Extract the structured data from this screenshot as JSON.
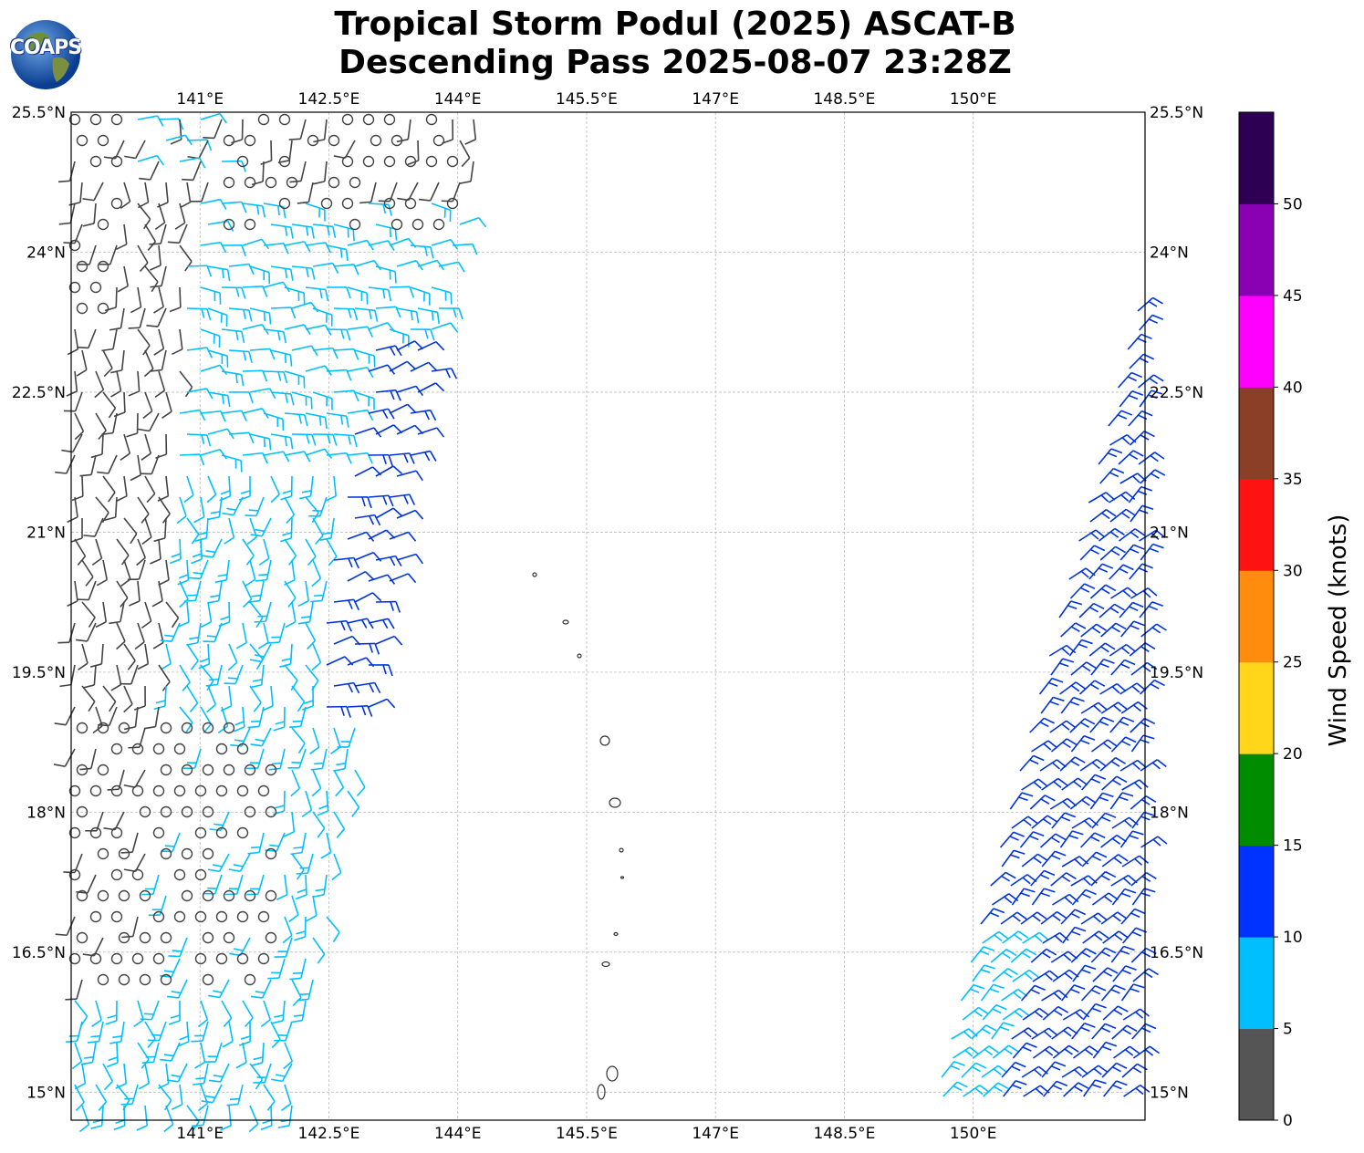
{
  "title": {
    "line1": "Tropical Storm Podul (2025) ASCAT-B",
    "line2": "Descending Pass 2025-08-07 23:28Z"
  },
  "logo": {
    "text": "COAPS"
  },
  "map": {
    "lon_range": [
      139.5,
      152.0
    ],
    "lat_range": [
      14.7,
      25.5
    ],
    "lon_ticks": [
      "141°E",
      "142.5°E",
      "144°E",
      "145.5°E",
      "147°E",
      "148.5°E",
      "150°E"
    ],
    "lat_ticks": [
      "25.5°N",
      "24°N",
      "22.5°N",
      "21°N",
      "19.5°N",
      "18°N",
      "16.5°N",
      "15°N"
    ],
    "grid": true
  },
  "colorbar": {
    "label": "Wind Speed (knots)",
    "ticks": [
      "0",
      "5",
      "10",
      "15",
      "20",
      "25",
      "30",
      "35",
      "40",
      "45",
      "50"
    ],
    "colors": [
      "#555555",
      "#00bfff",
      "#0033ff",
      "#008c00",
      "#ffd61a",
      "#ff8c0d",
      "#ff1212",
      "#8b3f26",
      "#ff00ff",
      "#8a00b3",
      "#2e0054"
    ]
  },
  "wind_colors": {
    "calm": "#444444",
    "light": "#00bfff",
    "moderate": "#0033dd"
  }
}
